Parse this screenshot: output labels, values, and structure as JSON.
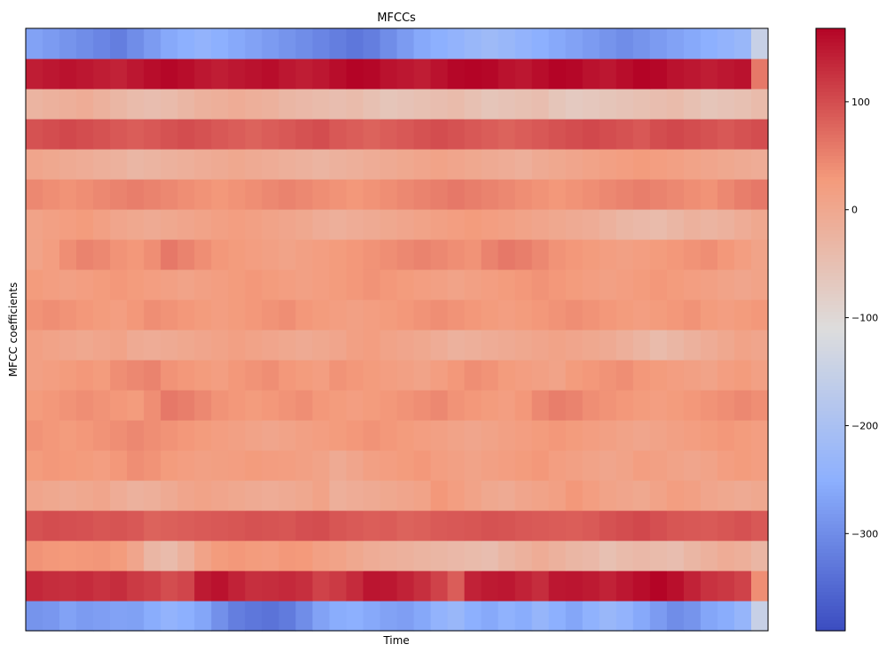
{
  "chart_data": {
    "type": "heatmap",
    "title": "MFCCs",
    "xlabel": "Time",
    "ylabel": "MFCC coefficients",
    "x_ticks": [],
    "y_ticks": [],
    "n_coefficients": 20,
    "n_frames": 44,
    "colormap": "coolwarm",
    "colorbar": {
      "vmin": -390,
      "vmax": 168,
      "ticks": [
        {
          "value": 100,
          "label": "100"
        },
        {
          "value": 0,
          "label": "0"
        },
        {
          "value": -100,
          "label": "−100"
        },
        {
          "value": -200,
          "label": "−200"
        },
        {
          "value": -300,
          "label": "−300"
        }
      ]
    },
    "rows": [
      {
        "coef": 0,
        "base": -295,
        "profile": [
          -290,
          -285,
          -270,
          -280,
          -275,
          -270,
          -272,
          -255,
          -240,
          -250,
          -265,
          -295,
          -320,
          -330,
          -335,
          -325,
          -300,
          -270,
          -255,
          -250,
          -260,
          -270,
          -275,
          -262,
          -240,
          -230,
          -250,
          -260,
          -245,
          -255,
          -235,
          -250,
          -265,
          -245,
          -230,
          -240,
          -260,
          -280,
          -300,
          -290,
          -265,
          -255,
          -235,
          -150
        ]
      },
      {
        "coef": 1,
        "base": 130,
        "profile": [
          135,
          130,
          128,
          132,
          125,
          130,
          118,
          112,
          100,
          108,
          148,
          155,
          140,
          128,
          130,
          134,
          128,
          110,
          118,
          132,
          152,
          150,
          140,
          128,
          110,
          85,
          140,
          148,
          150,
          140,
          130,
          150,
          152,
          148,
          140,
          150,
          160,
          170,
          158,
          140,
          125,
          120,
          110,
          40
        ]
      },
      {
        "coef": 2,
        "base": 20,
        "profile": [
          35,
          30,
          28,
          30,
          32,
          25,
          5,
          -30,
          -40,
          -20,
          10,
          25,
          30,
          25,
          22,
          30,
          28,
          15,
          10,
          0,
          -10,
          -15,
          -20,
          -25,
          -30,
          -35,
          -40,
          -45,
          -30,
          -20,
          -10,
          -20,
          -30,
          -35,
          -50,
          -40,
          -35,
          -40,
          -45,
          -30,
          -20,
          -10,
          -15,
          -30
        ]
      },
      {
        "coef": 3,
        "base": 90,
        "profile": [
          95,
          100,
          98,
          96,
          92,
          94,
          90,
          80,
          82,
          85,
          88,
          90,
          92,
          95,
          94,
          92,
          98,
          100,
          92,
          88,
          84,
          86,
          80,
          82,
          88,
          90,
          92,
          95,
          94,
          90,
          88,
          86,
          84,
          88,
          95,
          100,
          105,
          98,
          92,
          90,
          88,
          92,
          96,
          90
        ]
      },
      {
        "coef": 4,
        "base": 0,
        "profile": [
          5,
          0,
          -5,
          0,
          5,
          -10,
          -20,
          -15,
          -5,
          5,
          10,
          5,
          0,
          -5,
          -10,
          -5,
          0,
          10,
          -15,
          -10,
          -5,
          0,
          5,
          10,
          30,
          20,
          10,
          0,
          -5,
          5,
          10,
          15,
          30,
          20,
          10,
          5,
          0,
          10,
          20,
          15,
          5,
          0,
          -5,
          0
        ]
      },
      {
        "coef": 5,
        "base": 20,
        "profile": [
          25,
          30,
          28,
          25,
          20,
          30,
          40,
          35,
          25,
          20,
          15,
          18,
          20,
          25,
          22,
          20,
          15,
          10,
          -5,
          5,
          15,
          20,
          25,
          30,
          20,
          15,
          10,
          15,
          20,
          25,
          30,
          20,
          15,
          10,
          5,
          10,
          20,
          15,
          10,
          5,
          10,
          20,
          25,
          20
        ]
      },
      {
        "coef": 6,
        "base": 40,
        "profile": [
          35,
          30,
          25,
          30,
          35,
          40,
          45,
          40,
          35,
          30,
          25,
          20,
          15,
          10,
          5,
          10,
          15,
          20,
          25,
          30,
          35,
          30,
          25,
          20,
          15,
          10,
          5,
          10,
          15,
          20,
          25,
          30,
          25,
          20,
          15,
          10,
          5,
          10,
          15,
          20,
          25,
          30,
          25,
          20
        ]
      },
      {
        "coef": 7,
        "base": 30,
        "profile": [
          25,
          30,
          35,
          40,
          35,
          30,
          25,
          40,
          60,
          55,
          45,
          35,
          30,
          25,
          30,
          35,
          40,
          30,
          25,
          20,
          25,
          30,
          35,
          40,
          45,
          35,
          30,
          25,
          20,
          30,
          45,
          55,
          50,
          40,
          35,
          30,
          25,
          20,
          25,
          30,
          35,
          40,
          45,
          40
        ]
      },
      {
        "coef": 8,
        "base": 20,
        "profile": [
          15,
          20,
          25,
          30,
          25,
          40,
          45,
          50,
          35,
          30,
          25,
          20,
          30,
          35,
          40,
          30,
          25,
          20,
          35,
          30,
          25,
          20,
          15,
          10,
          20,
          30,
          40,
          35,
          25,
          20,
          15,
          10,
          25,
          30,
          35,
          40,
          30,
          25,
          20,
          15,
          10,
          20,
          25,
          15
        ]
      },
      {
        "coef": 9,
        "base": 10,
        "profile": [
          15,
          10,
          5,
          0,
          5,
          10,
          -5,
          -10,
          -5,
          0,
          5,
          10,
          15,
          10,
          5,
          0,
          -5,
          0,
          5,
          15,
          20,
          10,
          5,
          0,
          -10,
          -20,
          -15,
          -10,
          -5,
          0,
          5,
          10,
          5,
          0,
          -5,
          -15,
          -25,
          -40,
          -30,
          -20,
          -10,
          0,
          10,
          5
        ]
      },
      {
        "coef": 10,
        "base": 30,
        "profile": [
          35,
          40,
          35,
          30,
          25,
          20,
          30,
          40,
          35,
          30,
          25,
          20,
          25,
          30,
          35,
          40,
          30,
          25,
          20,
          15,
          20,
          25,
          30,
          35,
          40,
          35,
          30,
          25,
          20,
          25,
          30,
          35,
          40,
          35,
          30,
          25,
          20,
          25,
          30,
          35,
          25,
          20,
          25,
          30
        ]
      },
      {
        "coef": 11,
        "base": 20,
        "profile": [
          25,
          20,
          15,
          20,
          25,
          30,
          25,
          20,
          15,
          10,
          15,
          20,
          25,
          30,
          25,
          20,
          15,
          20,
          25,
          30,
          35,
          30,
          25,
          20,
          15,
          10,
          15,
          20,
          25,
          30,
          35,
          30,
          25,
          20,
          15,
          20,
          25,
          30,
          25,
          20,
          15,
          10,
          5,
          10
        ]
      },
      {
        "coef": 12,
        "base": 20,
        "profile": [
          10,
          20,
          40,
          50,
          45,
          35,
          30,
          40,
          60,
          50,
          40,
          30,
          25,
          20,
          15,
          10,
          15,
          20,
          25,
          30,
          35,
          40,
          45,
          50,
          45,
          40,
          35,
          50,
          60,
          55,
          45,
          35,
          30,
          25,
          20,
          15,
          20,
          25,
          30,
          35,
          40,
          30,
          20,
          10
        ]
      },
      {
        "coef": 13,
        "base": 0,
        "profile": [
          10,
          15,
          20,
          25,
          15,
          5,
          0,
          -5,
          0,
          5,
          10,
          15,
          20,
          15,
          10,
          5,
          0,
          -10,
          -15,
          -10,
          -5,
          0,
          5,
          10,
          15,
          20,
          25,
          20,
          15,
          10,
          5,
          0,
          -5,
          -10,
          -20,
          -30,
          -35,
          -40,
          -30,
          -20,
          -25,
          -20,
          -10,
          0
        ]
      },
      {
        "coef": 14,
        "base": 40,
        "profile": [
          45,
          40,
          35,
          40,
          45,
          50,
          55,
          50,
          45,
          40,
          35,
          30,
          35,
          40,
          45,
          50,
          45,
          40,
          35,
          30,
          35,
          40,
          45,
          50,
          55,
          60,
          55,
          50,
          45,
          40,
          35,
          30,
          35,
          40,
          45,
          50,
          55,
          50,
          45,
          40,
          35,
          45,
          55,
          60
        ]
      },
      {
        "coef": 15,
        "base": 0,
        "profile": [
          5,
          0,
          -5,
          -10,
          -15,
          -20,
          -30,
          -25,
          -20,
          -15,
          -10,
          -5,
          0,
          -5,
          -10,
          -15,
          -20,
          -25,
          -20,
          -15,
          -10,
          -5,
          0,
          5,
          10,
          5,
          0,
          -5,
          -10,
          -15,
          -5,
          0,
          5,
          10,
          15,
          20,
          25,
          20,
          15,
          10,
          5,
          0,
          -5,
          -10
        ]
      },
      {
        "coef": 16,
        "base": 100,
        "profile": [
          95,
          100,
          105,
          100,
          95,
          90,
          85,
          90,
          95,
          100,
          95,
          90,
          85,
          80,
          85,
          90,
          95,
          100,
          90,
          85,
          80,
          85,
          90,
          95,
          100,
          95,
          90,
          85,
          80,
          85,
          90,
          95,
          100,
          105,
          100,
          95,
          90,
          100,
          105,
          100,
          95,
          90,
          95,
          100
        ]
      },
      {
        "coef": 17,
        "base": -30,
        "profile": [
          -25,
          -20,
          -15,
          -10,
          -20,
          -30,
          -40,
          -45,
          -40,
          -30,
          -20,
          -15,
          -10,
          -15,
          -20,
          -30,
          -35,
          -40,
          -45,
          -40,
          -50,
          -60,
          -55,
          -50,
          -45,
          -40,
          -50,
          -60,
          -55,
          -50,
          -45,
          -60,
          -70,
          -65,
          -60,
          -55,
          -50,
          -45,
          -40,
          -50,
          -60,
          -55,
          -50,
          -40
        ]
      },
      {
        "coef": 18,
        "base": 150,
        "profile": [
          145,
          150,
          155,
          150,
          145,
          140,
          150,
          160,
          165,
          160,
          150,
          145,
          150,
          155,
          160,
          150,
          145,
          150,
          160,
          170,
          165,
          155,
          150,
          145,
          155,
          165,
          170,
          165,
          155,
          150,
          160,
          170,
          165,
          155,
          150,
          160,
          170,
          165,
          155,
          150,
          145,
          150,
          155,
          60
        ]
      },
      {
        "coef": 19,
        "base": -260,
        "profile": [
          -270,
          -280,
          -290,
          -300,
          -310,
          -320,
          -300,
          -280,
          -260,
          -250,
          -240,
          -250,
          -260,
          -270,
          -280,
          -290,
          -300,
          -310,
          -320,
          -330,
          -320,
          -300,
          -280,
          -260,
          -250,
          -240,
          -230,
          -220,
          -230,
          -240,
          -250,
          -260,
          -270,
          -280,
          -290,
          -300,
          -290,
          -280,
          -270,
          -260,
          -250,
          -240,
          -230,
          -150
        ]
      }
    ]
  }
}
